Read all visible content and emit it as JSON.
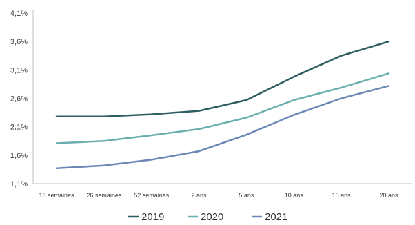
{
  "chart_data": {
    "type": "line",
    "title": "",
    "xlabel": "",
    "ylabel": "",
    "categories": [
      "13 semaines",
      "26 semaines",
      "52 semaines",
      "2 ans",
      "5 ans",
      "10 ans",
      "15 ans",
      "20 ans"
    ],
    "ylim": [
      1.1,
      4.1
    ],
    "yticks": [
      "4,1%",
      "3,6%",
      "3,1%",
      "2,6%",
      "2,1%",
      "1,6%",
      "1,1%"
    ],
    "ytick_values": [
      4.1,
      3.6,
      3.1,
      2.6,
      2.1,
      1.6,
      1.1
    ],
    "grid": false,
    "legend_position": "bottom",
    "series": [
      {
        "name": "2019",
        "color": "#2e5e5f",
        "values": [
          2.28,
          2.28,
          2.32,
          2.38,
          2.57,
          2.98,
          3.35,
          3.6
        ]
      },
      {
        "name": "2020",
        "color": "#6aaeae",
        "values": [
          1.81,
          1.85,
          1.95,
          2.06,
          2.26,
          2.57,
          2.79,
          3.04
        ]
      },
      {
        "name": "2021",
        "color": "#6b87b5",
        "values": [
          1.37,
          1.42,
          1.52,
          1.67,
          1.96,
          2.31,
          2.6,
          2.82
        ]
      }
    ]
  }
}
